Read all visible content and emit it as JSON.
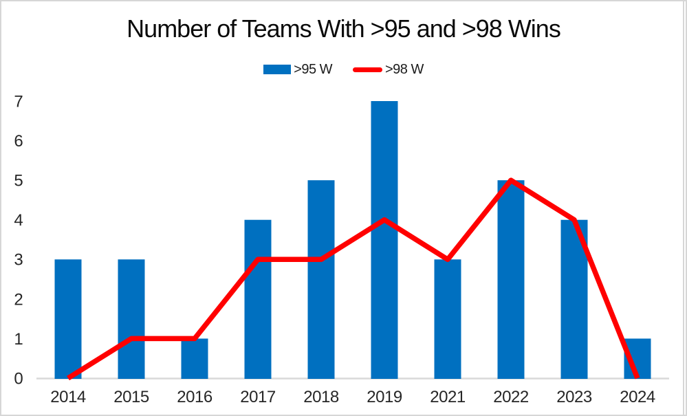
{
  "chart_data": {
    "type": "combo",
    "title": "Number of Teams With >95 and >98 Wins",
    "categories": [
      "2014",
      "2015",
      "2016",
      "2017",
      "2018",
      "2019",
      "2021",
      "2022",
      "2023",
      "2024"
    ],
    "series": [
      {
        "name": ">95 W",
        "type": "bar",
        "color": "#0070C0",
        "values": [
          3,
          3,
          1,
          4,
          5,
          7,
          3,
          5,
          4,
          1
        ]
      },
      {
        "name": ">98 W",
        "type": "line",
        "color": "#FF0000",
        "values": [
          0,
          1,
          1,
          3,
          3,
          4,
          3,
          5,
          4,
          0
        ]
      }
    ],
    "xlabel": "",
    "ylabel": "",
    "ylim": [
      0,
      7
    ],
    "yticks": [
      0,
      1,
      2,
      3,
      4,
      5,
      6,
      7
    ],
    "grid": "off",
    "legend_position": "top"
  },
  "colors": {
    "axis_line": "#D9D9D9",
    "tick_text": "#262626",
    "title_text": "#0A0A0A",
    "frame_border": "#D6D6D6",
    "background": "#FFFFFF"
  }
}
